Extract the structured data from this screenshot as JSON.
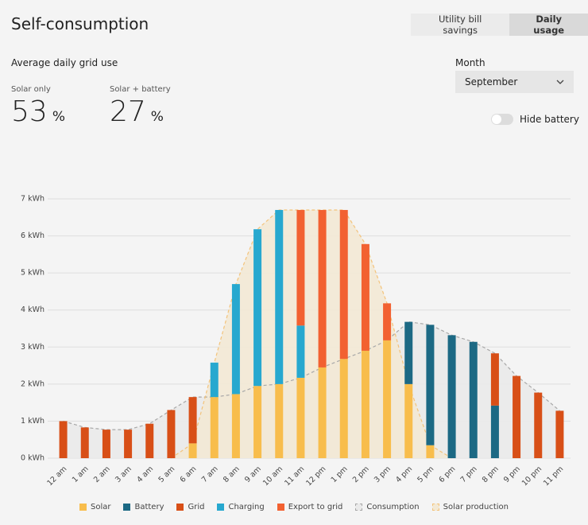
{
  "header": {
    "title": "Self-consumption",
    "tabs": [
      {
        "label": "Utility bill savings",
        "selected": false
      },
      {
        "label": "Daily usage",
        "selected": true
      }
    ]
  },
  "summary": {
    "heading": "Average daily grid use",
    "items": [
      {
        "label": "Solar only",
        "value": 53,
        "unit": "%"
      },
      {
        "label": "Solar + battery",
        "value": 27,
        "unit": "%"
      }
    ]
  },
  "month": {
    "label": "Month",
    "selected": "September"
  },
  "toggle": {
    "label": "Hide battery",
    "on": false
  },
  "chart_data": {
    "type": "bar",
    "stacked": true,
    "grid": true,
    "categories": [
      "12 am",
      "1 am",
      "2 am",
      "3 am",
      "4 am",
      "5 am",
      "6 am",
      "7 am",
      "8 am",
      "9 am",
      "10 am",
      "11 am",
      "12 pm",
      "1 pm",
      "2 pm",
      "3 pm",
      "4 pm",
      "5 pm",
      "6 pm",
      "7 pm",
      "8 pm",
      "9 pm",
      "10 pm",
      "11 pm"
    ],
    "series": [
      {
        "name": "Solar",
        "color": "#f8bd4c",
        "values": [
          null,
          null,
          null,
          null,
          null,
          null,
          0.4,
          1.65,
          1.73,
          1.95,
          2.0,
          2.17,
          2.45,
          2.68,
          2.9,
          3.18,
          2.0,
          0.35,
          null,
          null,
          null,
          null,
          null,
          null
        ]
      },
      {
        "name": "Battery",
        "color": "#1c6984",
        "values": [
          null,
          null,
          null,
          null,
          null,
          null,
          null,
          null,
          null,
          null,
          null,
          null,
          null,
          null,
          null,
          null,
          1.68,
          3.25,
          3.32,
          3.14,
          1.42,
          null,
          null,
          null
        ]
      },
      {
        "name": "Grid",
        "color": "#d84f17",
        "values": [
          1.0,
          0.83,
          0.77,
          0.77,
          0.93,
          1.3,
          1.25,
          null,
          null,
          null,
          null,
          null,
          null,
          null,
          null,
          null,
          null,
          null,
          null,
          null,
          1.41,
          2.22,
          1.77,
          1.28
        ]
      },
      {
        "name": "Charging",
        "color": "#27a8cf",
        "values": [
          null,
          null,
          null,
          null,
          null,
          null,
          null,
          0.93,
          2.97,
          4.23,
          4.7,
          1.41,
          null,
          null,
          null,
          null,
          null,
          null,
          null,
          null,
          null,
          null,
          null,
          null
        ]
      },
      {
        "name": "Export to grid",
        "color": "#f26131",
        "values": [
          null,
          null,
          null,
          null,
          null,
          null,
          null,
          null,
          null,
          null,
          null,
          3.12,
          4.25,
          4.02,
          2.88,
          1.0,
          null,
          null,
          null,
          null,
          null,
          null,
          null,
          null
        ]
      }
    ],
    "areas": [
      {
        "name": "Consumption",
        "color": "#a8a8a8",
        "fill": "#eaeaea",
        "values": [
          1.0,
          0.83,
          0.77,
          0.77,
          0.93,
          1.3,
          1.65,
          1.65,
          1.73,
          1.95,
          2.0,
          2.17,
          2.45,
          2.68,
          2.9,
          3.18,
          3.68,
          3.6,
          3.32,
          3.14,
          2.83,
          2.22,
          1.77,
          1.28
        ]
      },
      {
        "name": "Solar production",
        "color": "#f3c37b",
        "fill": "#f3e9d5",
        "values": [
          null,
          null,
          null,
          null,
          null,
          0,
          0.4,
          2.58,
          4.7,
          6.18,
          6.7,
          6.7,
          6.7,
          6.7,
          5.78,
          4.18,
          2.0,
          0.35,
          0,
          null,
          null,
          null,
          null,
          null
        ]
      }
    ],
    "ylim": [
      0,
      7
    ],
    "yticks": [
      {
        "value": 0,
        "label": "0 kWh"
      },
      {
        "value": 1,
        "label": "1 kWh"
      },
      {
        "value": 2,
        "label": "2 kWh"
      },
      {
        "value": 3,
        "label": "3 kWh"
      },
      {
        "value": 4,
        "label": "4 kWh"
      },
      {
        "value": 5,
        "label": "5 kWh"
      },
      {
        "value": 6,
        "label": "6 kWh"
      },
      {
        "value": 7,
        "label": "7 kWh"
      }
    ]
  }
}
